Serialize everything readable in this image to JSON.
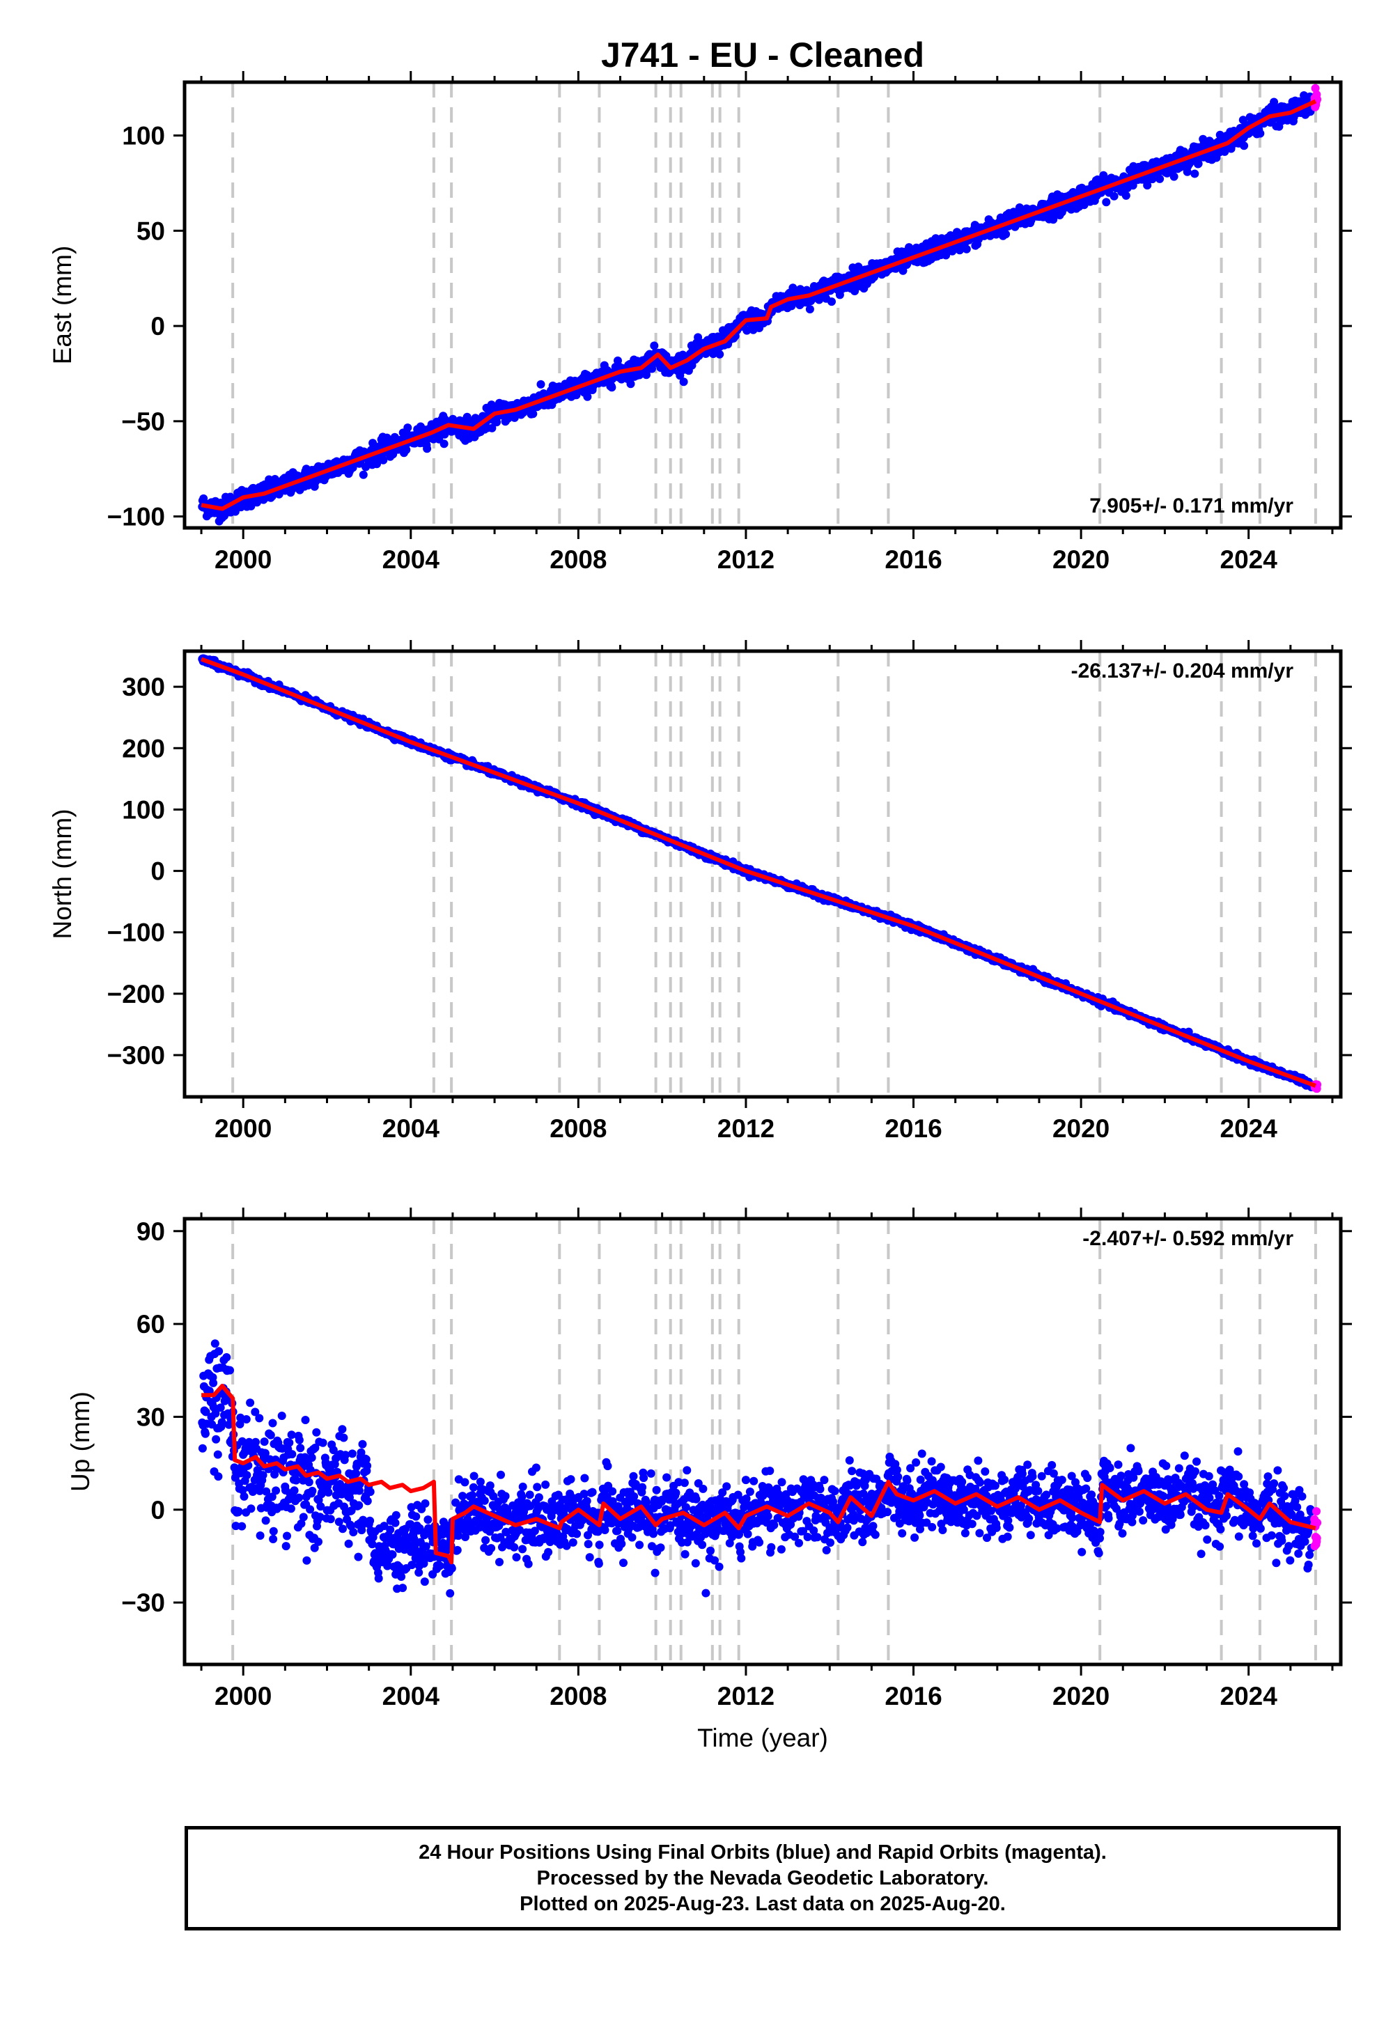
{
  "title": "J741  - EU - Cleaned",
  "colors": {
    "final": "#0000ff",
    "rapid": "#ff00ff",
    "model": "#ff0000",
    "steps": "#c8c8c8"
  },
  "footer": {
    "line1": "24 Hour Positions Using Final Orbits (blue) and Rapid Orbits (magenta).",
    "line2": "Processed by the Nevada Geodetic Laboratory.",
    "line3": "Plotted on 2025-Aug-23. Last data on 2025-Aug-20."
  },
  "chart_data": [
    {
      "type": "scatter",
      "id": "east",
      "ylabel": "East (mm)",
      "xlabel": "",
      "rate_label": "7.905+/- 0.171 mm/yr",
      "rate_position": "bottom-right",
      "xlim": [
        1998.6,
        2026.2
      ],
      "ylim": [
        -106,
        128
      ],
      "xticks": [
        2000,
        2004,
        2008,
        2012,
        2016,
        2020,
        2024
      ],
      "yticks": [
        -100,
        -50,
        0,
        50,
        100
      ],
      "ytick_labels": [
        "−100",
        "−50",
        "0",
        "50",
        "100"
      ],
      "series": [
        {
          "role": "model",
          "x": [
            1999.0,
            1999.5,
            2000.0,
            2000.5,
            2001.0,
            2001.5,
            2002.0,
            2002.5,
            2003.0,
            2003.5,
            2004.0,
            2004.5,
            2004.9,
            2005.5,
            2006.0,
            2006.5,
            2007.0,
            2007.5,
            2008.0,
            2008.5,
            2009.0,
            2009.5,
            2009.9,
            2010.2,
            2010.6,
            2011.0,
            2011.5,
            2012.0,
            2012.5,
            2012.6,
            2013.0,
            2013.5,
            2014.0,
            2014.5,
            2015.0,
            2015.5,
            2016.0,
            2016.5,
            2017.0,
            2017.5,
            2018.0,
            2018.5,
            2019.0,
            2019.5,
            2020.0,
            2020.5,
            2021.0,
            2021.5,
            2022.0,
            2022.5,
            2023.0,
            2023.5,
            2024.0,
            2024.5,
            2025.0,
            2025.5,
            2025.6
          ],
          "y": [
            -94,
            -96,
            -90,
            -88,
            -84,
            -80,
            -76,
            -72,
            -68,
            -64,
            -60,
            -56,
            -52,
            -54,
            -46,
            -44,
            -40,
            -36,
            -32,
            -28,
            -24,
            -22,
            -15,
            -22,
            -18,
            -12,
            -8,
            3,
            4,
            10,
            14,
            16,
            20,
            24,
            28,
            32,
            36,
            40,
            44,
            48,
            52,
            56,
            60,
            64,
            68,
            72,
            76,
            80,
            84,
            88,
            92,
            96,
            104,
            110,
            112,
            117,
            118
          ]
        }
      ],
      "offsets": [
        1999.75,
        2004.55,
        2004.97,
        2007.55,
        2008.5,
        2009.85,
        2010.2,
        2010.45,
        2011.2,
        2011.38,
        2011.83,
        2014.2,
        2015.4,
        2020.45,
        2023.35,
        2024.27,
        2025.6
      ]
    },
    {
      "type": "scatter",
      "id": "north",
      "ylabel": "North (mm)",
      "xlabel": "",
      "rate_label": "-26.137+/- 0.204 mm/yr",
      "rate_position": "top-right",
      "xlim": [
        1998.6,
        2026.2
      ],
      "ylim": [
        -368,
        358
      ],
      "xticks": [
        2000,
        2004,
        2008,
        2012,
        2016,
        2020,
        2024
      ],
      "yticks": [
        -300,
        -200,
        -100,
        0,
        100,
        200,
        300
      ],
      "ytick_labels": [
        "−300",
        "−200",
        "−100",
        "0",
        "100",
        "200",
        "300"
      ],
      "series": [
        {
          "role": "model",
          "x": [
            1999.0,
            2000.0,
            2004.0,
            2008.0,
            2012.0,
            2016.0,
            2020.0,
            2024.0,
            2025.6
          ],
          "y": [
            345,
            320,
            210,
            110,
            0,
            -90,
            -200,
            -310,
            -350
          ]
        }
      ],
      "offsets": [
        1999.75,
        2004.55,
        2004.97,
        2007.55,
        2008.5,
        2009.85,
        2010.2,
        2010.45,
        2011.2,
        2011.38,
        2011.83,
        2014.2,
        2015.4,
        2020.45,
        2023.35,
        2024.27,
        2025.6
      ]
    },
    {
      "type": "scatter",
      "id": "up",
      "ylabel": "Up (mm)",
      "xlabel": "Time (year)",
      "rate_label": "-2.407+/- 0.592 mm/yr",
      "rate_position": "top-right",
      "xlim": [
        1998.6,
        2026.2
      ],
      "ylim": [
        -50,
        94
      ],
      "xticks": [
        2000,
        2004,
        2008,
        2012,
        2016,
        2020,
        2024
      ],
      "yticks": [
        -30,
        0,
        30,
        60,
        90
      ],
      "ytick_labels": [
        "−30",
        "0",
        "30",
        "60",
        "90"
      ],
      "series": [
        {
          "role": "model",
          "x": [
            1999.0,
            1999.3,
            1999.5,
            1999.75,
            1999.8,
            2000.0,
            2000.3,
            2000.5,
            2000.8,
            2001.0,
            2001.3,
            2001.5,
            2001.8,
            2002.0,
            2002.3,
            2002.5,
            2002.8,
            2003.0,
            2003.3,
            2003.5,
            2003.8,
            2004.0,
            2004.3,
            2004.55,
            2004.6,
            2004.9,
            2004.97,
            2005.0,
            2005.3,
            2005.5,
            2006.0,
            2006.5,
            2007.0,
            2007.55,
            2007.6,
            2008.0,
            2008.5,
            2008.6,
            2009.0,
            2009.5,
            2009.85,
            2010.0,
            2010.5,
            2011.0,
            2011.5,
            2011.83,
            2012.0,
            2012.5,
            2013.0,
            2013.5,
            2014.0,
            2014.2,
            2014.5,
            2015.0,
            2015.4,
            2015.6,
            2016.0,
            2016.5,
            2017.0,
            2017.5,
            2018.0,
            2018.5,
            2019.0,
            2019.5,
            2020.0,
            2020.45,
            2020.5,
            2021.0,
            2021.5,
            2022.0,
            2022.5,
            2023.0,
            2023.35,
            2023.5,
            2024.0,
            2024.27,
            2024.5,
            2025.0,
            2025.6
          ],
          "y": [
            37,
            37,
            40,
            36,
            16,
            15,
            17,
            14,
            15,
            13,
            14,
            11,
            12,
            10,
            11,
            9,
            10,
            8,
            9,
            7,
            8,
            6,
            7,
            9,
            -14,
            -15,
            -17,
            -3,
            -1,
            1,
            -2,
            -5,
            -3,
            -6,
            -4,
            0,
            -5,
            2,
            -3,
            1,
            -5,
            -3,
            -1,
            -5,
            -1,
            -6,
            -2,
            1,
            -2,
            2,
            -1,
            -4,
            4,
            -2,
            9,
            5,
            3,
            6,
            2,
            5,
            1,
            4,
            0,
            3,
            -1,
            -4,
            8,
            3,
            6,
            2,
            5,
            0,
            -1,
            5,
            0,
            -3,
            2,
            -4,
            -6
          ]
        }
      ],
      "offsets": [
        1999.75,
        2004.55,
        2004.97,
        2007.55,
        2008.5,
        2009.85,
        2010.2,
        2010.45,
        2011.2,
        2011.38,
        2011.83,
        2014.2,
        2015.4,
        2020.45,
        2023.35,
        2024.27,
        2025.6
      ]
    }
  ]
}
